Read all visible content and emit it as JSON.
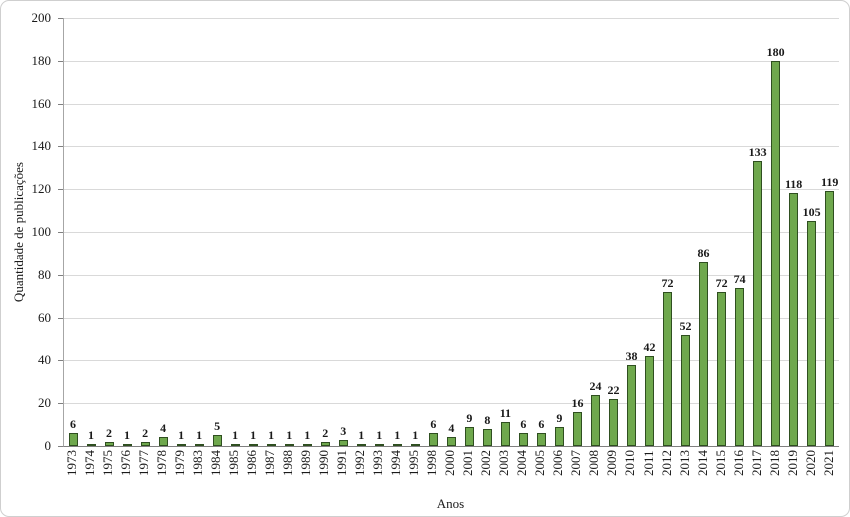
{
  "figure": {
    "background": "#ffffff",
    "border_color": "#cfcfcf"
  },
  "chart_data": {
    "type": "bar",
    "title": "",
    "xlabel": "Anos",
    "ylabel": "Quantidade de publicações",
    "categories": [
      "1973",
      "1974",
      "1975",
      "1976",
      "1977",
      "1978",
      "1979",
      "1983",
      "1984",
      "1985",
      "1986",
      "1987",
      "1988",
      "1989",
      "1990",
      "1991",
      "1992",
      "1993",
      "1994",
      "1995",
      "1998",
      "2000",
      "2001",
      "2002",
      "2003",
      "2004",
      "2005",
      "2006",
      "2007",
      "2008",
      "2009",
      "2010",
      "2011",
      "2012",
      "2013",
      "2014",
      "2015",
      "2016",
      "2017",
      "2018",
      "2019",
      "2020",
      "2021"
    ],
    "values": [
      6,
      1,
      2,
      1,
      2,
      4,
      1,
      1,
      5,
      1,
      1,
      1,
      1,
      1,
      2,
      3,
      1,
      1,
      1,
      1,
      6,
      4,
      9,
      8,
      11,
      6,
      6,
      9,
      16,
      24,
      22,
      38,
      42,
      72,
      52,
      86,
      72,
      74,
      133,
      180,
      118,
      105,
      119
    ],
    "ylim": [
      0,
      200
    ],
    "ytick_step": 20,
    "grid": true,
    "legend": "none",
    "data_labels": true,
    "bar_color": "#6FA84D",
    "bar_border_color": "#2F4F20",
    "gridline_color": "#D9D9D9",
    "axis_color": "#808080",
    "text_color": "#1a1a1a"
  }
}
